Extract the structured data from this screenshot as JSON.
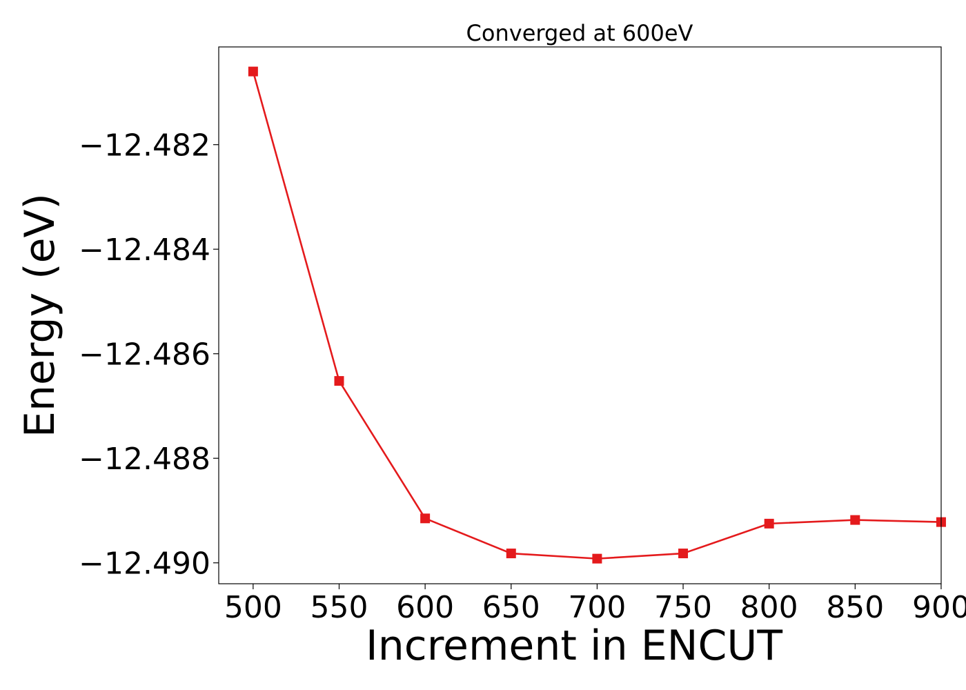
{
  "chart_data": {
    "type": "line",
    "title": "Converged at 600eV",
    "xlabel": "Increment in ENCUT",
    "ylabel": "Energy (eV)",
    "x": [
      500,
      550,
      600,
      650,
      700,
      750,
      800,
      850,
      900
    ],
    "series": [
      {
        "values": [
          -12.4806,
          -12.48652,
          -12.48915,
          -12.48982,
          -12.48992,
          -12.48982,
          -12.48925,
          -12.48918,
          -12.48922
        ],
        "color": "#e41a1c",
        "marker": "square"
      }
    ],
    "xticks": [
      500,
      550,
      600,
      650,
      700,
      750,
      800,
      850,
      900
    ],
    "xtick_labels": [
      "500",
      "550",
      "600",
      "650",
      700,
      "750",
      "800",
      "850",
      "900"
    ],
    "yticks": [
      -12.482,
      -12.484,
      -12.486,
      -12.488,
      -12.49
    ],
    "ytick_labels": [
      "−12.482",
      "−12.484",
      "−12.486",
      "−12.488",
      "−12.490"
    ],
    "xlim": [
      480,
      900.02
    ],
    "ylim": [
      -12.4904,
      -12.48013
    ],
    "grid": false,
    "legend": "none"
  }
}
